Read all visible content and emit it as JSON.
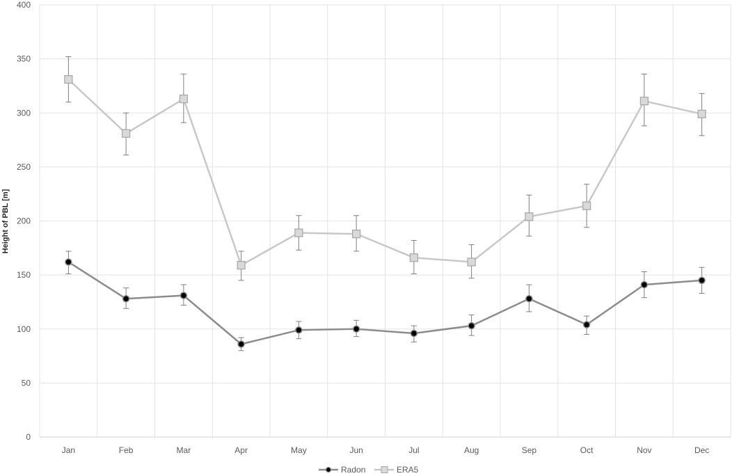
{
  "chart_data": {
    "type": "line",
    "title": "",
    "xlabel": "",
    "ylabel": "Height of PBL [m]",
    "ylim": [
      0,
      400
    ],
    "yticks": [
      0,
      50,
      100,
      150,
      200,
      250,
      300,
      350,
      400
    ],
    "categories": [
      "Jan",
      "Feb",
      "Mar",
      "Apr",
      "May",
      "Jun",
      "Jul",
      "Aug",
      "Sep",
      "Oct",
      "Nov",
      "Dec"
    ],
    "grid": "on",
    "legend_position": "bottom",
    "series": [
      {
        "name": "Radon",
        "marker": "circle",
        "line_color": "#8c8c8c",
        "marker_color": "#000000",
        "values": [
          162,
          128,
          131,
          86,
          99,
          100,
          96,
          103,
          128,
          104,
          141,
          145
        ],
        "error_low": [
          151,
          119,
          122,
          80,
          91,
          93,
          88,
          94,
          116,
          95,
          129,
          133
        ],
        "error_high": [
          172,
          138,
          141,
          92,
          107,
          108,
          103,
          113,
          141,
          112,
          153,
          157
        ]
      },
      {
        "name": "ERA5",
        "marker": "square",
        "line_color": "#c8c8c8",
        "marker_color": "#d9d9d9",
        "values": [
          331,
          281,
          313,
          159,
          189,
          188,
          166,
          162,
          204,
          214,
          311,
          299
        ],
        "error_low": [
          310,
          261,
          291,
          145,
          173,
          172,
          151,
          147,
          186,
          194,
          288,
          279
        ],
        "error_high": [
          352,
          300,
          336,
          172,
          205,
          205,
          182,
          178,
          224,
          234,
          336,
          318
        ]
      }
    ]
  }
}
